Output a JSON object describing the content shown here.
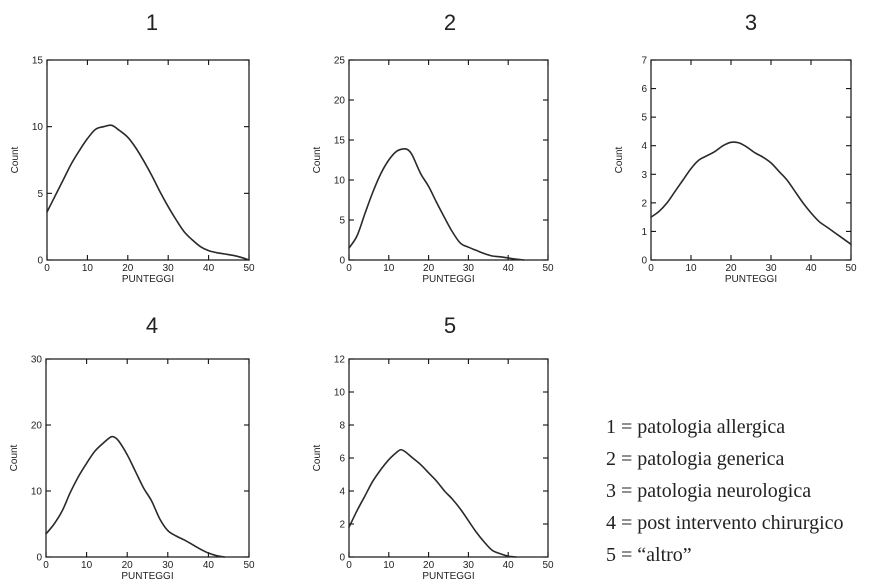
{
  "chart_data": [
    {
      "type": "line",
      "title": "1",
      "xlabel": "PUNTEGGI",
      "ylabel": "Count",
      "xlim": [
        0,
        50
      ],
      "ylim": [
        0,
        15
      ],
      "xticks": [
        0,
        10,
        20,
        30,
        40,
        50
      ],
      "yticks": [
        0,
        5,
        10,
        15
      ],
      "x": [
        0,
        2,
        4,
        6,
        8,
        10,
        12,
        14,
        16,
        18,
        20,
        22,
        24,
        26,
        28,
        30,
        32,
        34,
        36,
        38,
        40,
        42,
        44,
        46,
        48,
        50
      ],
      "y": [
        3.6,
        4.8,
        6.0,
        7.2,
        8.2,
        9.1,
        9.8,
        10.0,
        10.1,
        9.7,
        9.2,
        8.4,
        7.4,
        6.3,
        5.1,
        4.0,
        3.0,
        2.1,
        1.5,
        1.0,
        0.7,
        0.55,
        0.45,
        0.35,
        0.2,
        0.0
      ]
    },
    {
      "type": "line",
      "title": "2",
      "xlabel": "PUNTEGGI",
      "ylabel": "Count",
      "xlim": [
        0,
        50
      ],
      "ylim": [
        0,
        25
      ],
      "xticks": [
        0,
        10,
        20,
        30,
        40,
        50
      ],
      "yticks": [
        0,
        5,
        10,
        15,
        20,
        25
      ],
      "x": [
        0,
        2,
        4,
        6,
        8,
        10,
        12,
        14,
        15,
        16,
        18,
        20,
        22,
        24,
        26,
        28,
        30,
        32,
        34,
        36,
        38,
        40,
        42,
        44
      ],
      "y": [
        1.5,
        3.0,
        5.8,
        8.5,
        10.8,
        12.5,
        13.6,
        13.9,
        13.7,
        13.0,
        10.8,
        9.2,
        7.2,
        5.3,
        3.5,
        2.1,
        1.6,
        1.2,
        0.8,
        0.5,
        0.4,
        0.25,
        0.1,
        0.0
      ]
    },
    {
      "type": "line",
      "title": "3",
      "xlabel": "PUNTEGGI",
      "ylabel": "Count",
      "xlim": [
        0,
        50
      ],
      "ylim": [
        0,
        7
      ],
      "xticks": [
        0,
        10,
        20,
        30,
        40,
        50
      ],
      "yticks": [
        0,
        1,
        2,
        3,
        4,
        5,
        6,
        7
      ],
      "x": [
        0,
        2,
        4,
        6,
        8,
        10,
        12,
        14,
        16,
        18,
        20,
        22,
        24,
        26,
        28,
        30,
        32,
        34,
        36,
        38,
        40,
        42,
        44,
        46,
        48,
        50
      ],
      "y": [
        1.5,
        1.7,
        2.0,
        2.4,
        2.8,
        3.2,
        3.5,
        3.65,
        3.8,
        4.0,
        4.12,
        4.1,
        3.95,
        3.75,
        3.6,
        3.4,
        3.1,
        2.8,
        2.4,
        2.0,
        1.65,
        1.35,
        1.15,
        0.95,
        0.75,
        0.55
      ]
    },
    {
      "type": "line",
      "title": "4",
      "xlabel": "PUNTEGGI",
      "ylabel": "Count",
      "xlim": [
        0,
        50
      ],
      "ylim": [
        0,
        30
      ],
      "xticks": [
        0,
        10,
        20,
        30,
        40,
        50
      ],
      "yticks": [
        0,
        10,
        20,
        30
      ],
      "x": [
        0,
        2,
        4,
        6,
        8,
        10,
        12,
        14,
        16,
        17,
        18,
        20,
        22,
        24,
        26,
        28,
        30,
        32,
        34,
        36,
        38,
        40,
        42,
        44
      ],
      "y": [
        3.5,
        5.0,
        7.0,
        9.8,
        12.2,
        14.2,
        16.0,
        17.2,
        18.2,
        18.1,
        17.5,
        15.5,
        13.0,
        10.5,
        8.5,
        5.8,
        4.0,
        3.2,
        2.6,
        1.9,
        1.2,
        0.6,
        0.2,
        0.0
      ]
    },
    {
      "type": "line",
      "title": "5",
      "xlabel": "PUNTEGGI",
      "ylabel": "Count",
      "xlim": [
        0,
        50
      ],
      "ylim": [
        0,
        12
      ],
      "xticks": [
        0,
        10,
        20,
        30,
        40,
        50
      ],
      "yticks": [
        0,
        2,
        4,
        6,
        8,
        10,
        12
      ],
      "x": [
        0,
        2,
        4,
        6,
        8,
        10,
        12,
        13,
        14,
        16,
        18,
        20,
        22,
        24,
        26,
        28,
        30,
        32,
        34,
        36,
        38,
        40,
        42
      ],
      "y": [
        1.8,
        2.8,
        3.7,
        4.6,
        5.3,
        5.9,
        6.35,
        6.5,
        6.4,
        6.0,
        5.6,
        5.1,
        4.6,
        4.0,
        3.5,
        2.9,
        2.2,
        1.5,
        0.9,
        0.4,
        0.2,
        0.05,
        0.0
      ]
    }
  ],
  "legend": [
    "1 = patologia allergica",
    "2 = patologia generica",
    "3 = patologia neurologica",
    "4 = post intervento chirurgico",
    "5 = “altro”"
  ]
}
